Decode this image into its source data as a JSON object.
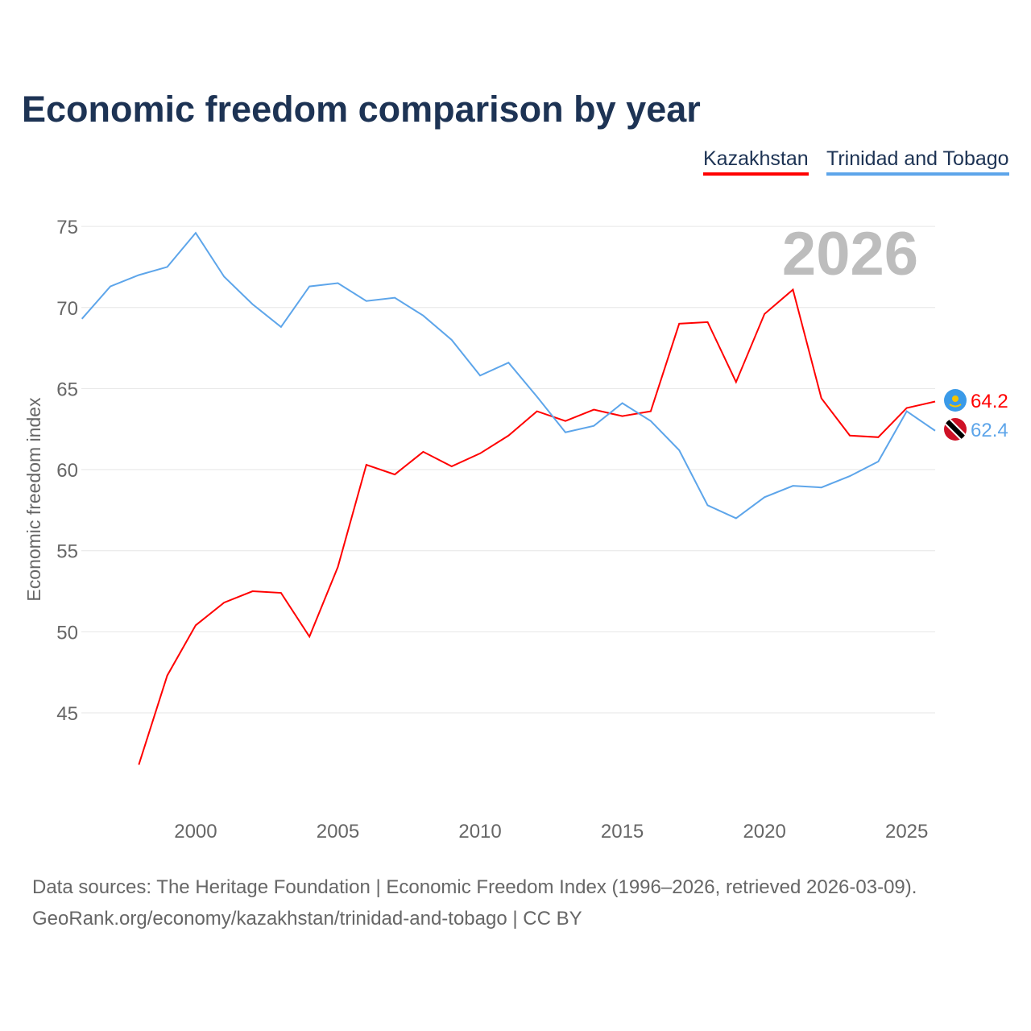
{
  "chart_data": {
    "type": "line",
    "title": "Economic freedom comparison by year",
    "xlabel": "",
    "ylabel": "Economic freedom index",
    "xlim": [
      1996,
      2026
    ],
    "ylim": [
      40,
      77
    ],
    "yticks": [
      45,
      50,
      55,
      60,
      65,
      70,
      75
    ],
    "xticks": [
      2000,
      2005,
      2010,
      2015,
      2020,
      2025
    ],
    "grid": true,
    "legend_position": "top-right",
    "year_label": "2026",
    "series": [
      {
        "name": "Kazakhstan",
        "color": "#ff0000",
        "end_label": "64.2",
        "x": [
          1998,
          1999,
          2000,
          2001,
          2002,
          2003,
          2004,
          2005,
          2006,
          2007,
          2008,
          2009,
          2010,
          2011,
          2012,
          2013,
          2014,
          2015,
          2016,
          2017,
          2018,
          2019,
          2020,
          2021,
          2022,
          2023,
          2024,
          2025,
          2026
        ],
        "values": [
          41.8,
          47.3,
          50.4,
          51.8,
          52.5,
          52.4,
          49.7,
          54.0,
          60.3,
          59.7,
          61.1,
          60.2,
          61.0,
          62.1,
          63.6,
          63.0,
          63.7,
          63.3,
          63.6,
          69.0,
          69.1,
          65.4,
          69.6,
          71.1,
          64.4,
          62.1,
          62.0,
          63.8,
          64.2
        ]
      },
      {
        "name": "Trinidad and Tobago",
        "color": "#5da5ea",
        "end_label": "62.4",
        "x": [
          1996,
          1997,
          1998,
          1999,
          2000,
          2001,
          2002,
          2003,
          2004,
          2005,
          2006,
          2007,
          2008,
          2009,
          2010,
          2011,
          2012,
          2013,
          2014,
          2015,
          2016,
          2017,
          2018,
          2019,
          2020,
          2021,
          2022,
          2023,
          2024,
          2025,
          2026
        ],
        "values": [
          69.3,
          71.3,
          72.0,
          72.5,
          74.6,
          71.9,
          70.2,
          68.8,
          71.3,
          71.5,
          70.4,
          70.6,
          69.5,
          68.0,
          65.8,
          66.6,
          64.5,
          62.3,
          62.7,
          64.1,
          63.0,
          61.2,
          57.8,
          57.0,
          58.3,
          59.0,
          58.9,
          59.6,
          60.5,
          63.6,
          62.4
        ]
      }
    ]
  },
  "footer": {
    "line1": "Data sources: The Heritage Foundation | Economic Freedom Index (1996–2026, retrieved 2026-03-09).",
    "line2": "GeoRank.org/economy/kazakhstan/trinidad-and-tobago | CC BY"
  }
}
